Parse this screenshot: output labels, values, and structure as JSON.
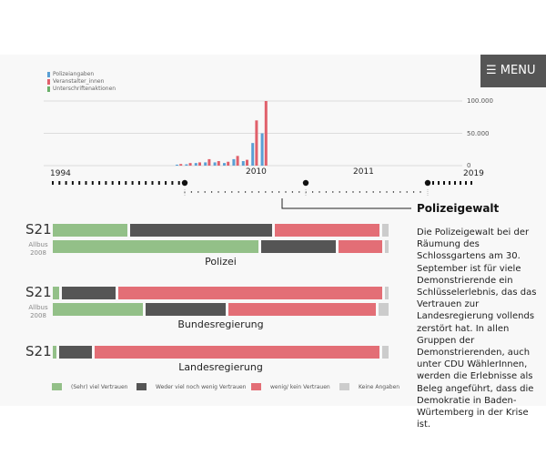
{
  "menu": {
    "label": "MENU"
  },
  "chart_data": {
    "type": "bar",
    "series": [
      {
        "name": "Polizeiangaben",
        "color": "#5a9fd4",
        "values": [
          1500,
          2000,
          4000,
          5000,
          5000,
          4000,
          10000,
          7000,
          35000,
          50000
        ]
      },
      {
        "name": "Veranstalter_innen",
        "color": "#e0606b",
        "values": [
          2500,
          4000,
          5000,
          10000,
          7000,
          6000,
          15000,
          9000,
          70000,
          100000
        ]
      },
      {
        "name": "Unterschriftenaktionen",
        "color": "#6ab06a",
        "values": []
      }
    ],
    "ylim": [
      0,
      100000
    ],
    "yticks": [
      "100.000",
      "50.000",
      "0"
    ]
  },
  "timeline": {
    "years": [
      "1994",
      "2010",
      "2011",
      "2019"
    ]
  },
  "topic": {
    "title": "Polizeigewalt",
    "text": "Die Polizeigewalt bei der Räumung des Schlossgartens am 30. September ist für viele Demonstrierende ein Schlüsselerlebnis, das das Vertrauen zur Landesregierung vollends zerstört hat. In allen Gruppen der Demonstrierenden, auch unter CDU WählerInnen, werden die Erlebnisse als Beleg angeführt, dass die Demokratie in Baden-Würtemberg in der Krise ist."
  },
  "labels": {
    "s21": "S21",
    "allbus": "Allbus",
    "allbus_year": "2008"
  },
  "groups": [
    {
      "name": "Polizei",
      "s21": [
        22,
        42,
        31,
        2
      ],
      "allbus": [
        61,
        22,
        13,
        1
      ]
    },
    {
      "name": "Bundesregierung",
      "s21": [
        2,
        16,
        79,
        1
      ],
      "allbus": [
        27,
        24,
        44,
        3
      ]
    },
    {
      "name": "Landesregierung",
      "s21": [
        1,
        10,
        85,
        2
      ]
    }
  ],
  "legend": [
    {
      "label": "(Sehr) viel Vertrauen",
      "color": "#93c088"
    },
    {
      "label": "Weder viel noch wenig Vertrauen",
      "color": "#555555"
    },
    {
      "label": "wenig/ kein Vertrauen",
      "color": "#e36e76"
    },
    {
      "label": "Keine Angaben",
      "color": "#cccccc"
    }
  ]
}
